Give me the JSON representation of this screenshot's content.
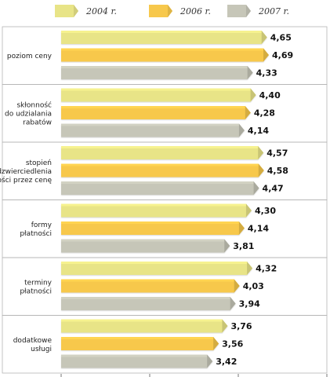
{
  "chart_data": {
    "type": "bar",
    "orientation": "horizontal",
    "legend_position": "top",
    "grid": false,
    "xlim": [
      0,
      6
    ],
    "x_ticks": [
      "0",
      "2",
      "4",
      "6"
    ],
    "categories": [
      [
        "poziom ceny"
      ],
      [
        "skłonność",
        "do udzialania",
        "rabatów"
      ],
      [
        "stopień",
        "odzwierciedlenia",
        "jakości przez cenę"
      ],
      [
        "formy",
        "płatności"
      ],
      [
        "terminy",
        "płatności"
      ],
      [
        "dodatkowe",
        "usługi"
      ]
    ],
    "series": [
      {
        "name": "2004 r.",
        "color": "#e8e487",
        "values": [
          4.65,
          4.4,
          4.57,
          4.3,
          4.32,
          3.76
        ],
        "labels": [
          "4,65",
          "4,40",
          "4,57",
          "4,30",
          "4,32",
          "3,76"
        ]
      },
      {
        "name": "2006 r.",
        "color": "#f7c84c",
        "values": [
          4.69,
          4.28,
          4.58,
          4.14,
          4.03,
          3.56
        ],
        "labels": [
          "4,69",
          "4,28",
          "4,58",
          "4,14",
          "4,03",
          "3,56"
        ]
      },
      {
        "name": "2007 r.",
        "color": "#c6c6b8",
        "values": [
          4.33,
          4.14,
          4.47,
          3.81,
          3.94,
          3.42
        ],
        "labels": [
          "4,33",
          "4,14",
          "4,47",
          "3,81",
          "3,94",
          "3,42"
        ]
      }
    ]
  }
}
